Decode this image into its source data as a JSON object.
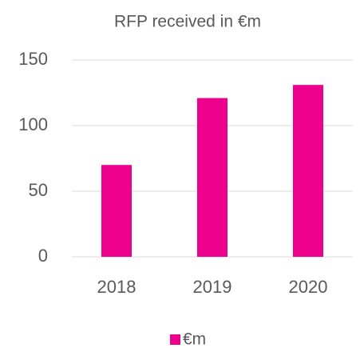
{
  "chart_data": {
    "type": "bar",
    "title": "RFP received in €m",
    "categories": [
      "2018",
      "2019",
      "2020"
    ],
    "series": [
      {
        "name": "€m",
        "color": "#ec008c",
        "values": [
          70,
          121,
          131
        ]
      }
    ],
    "ylim": [
      0,
      150
    ],
    "yticks": [
      0,
      50,
      100,
      150
    ],
    "grid": true,
    "legend": "bottom"
  }
}
